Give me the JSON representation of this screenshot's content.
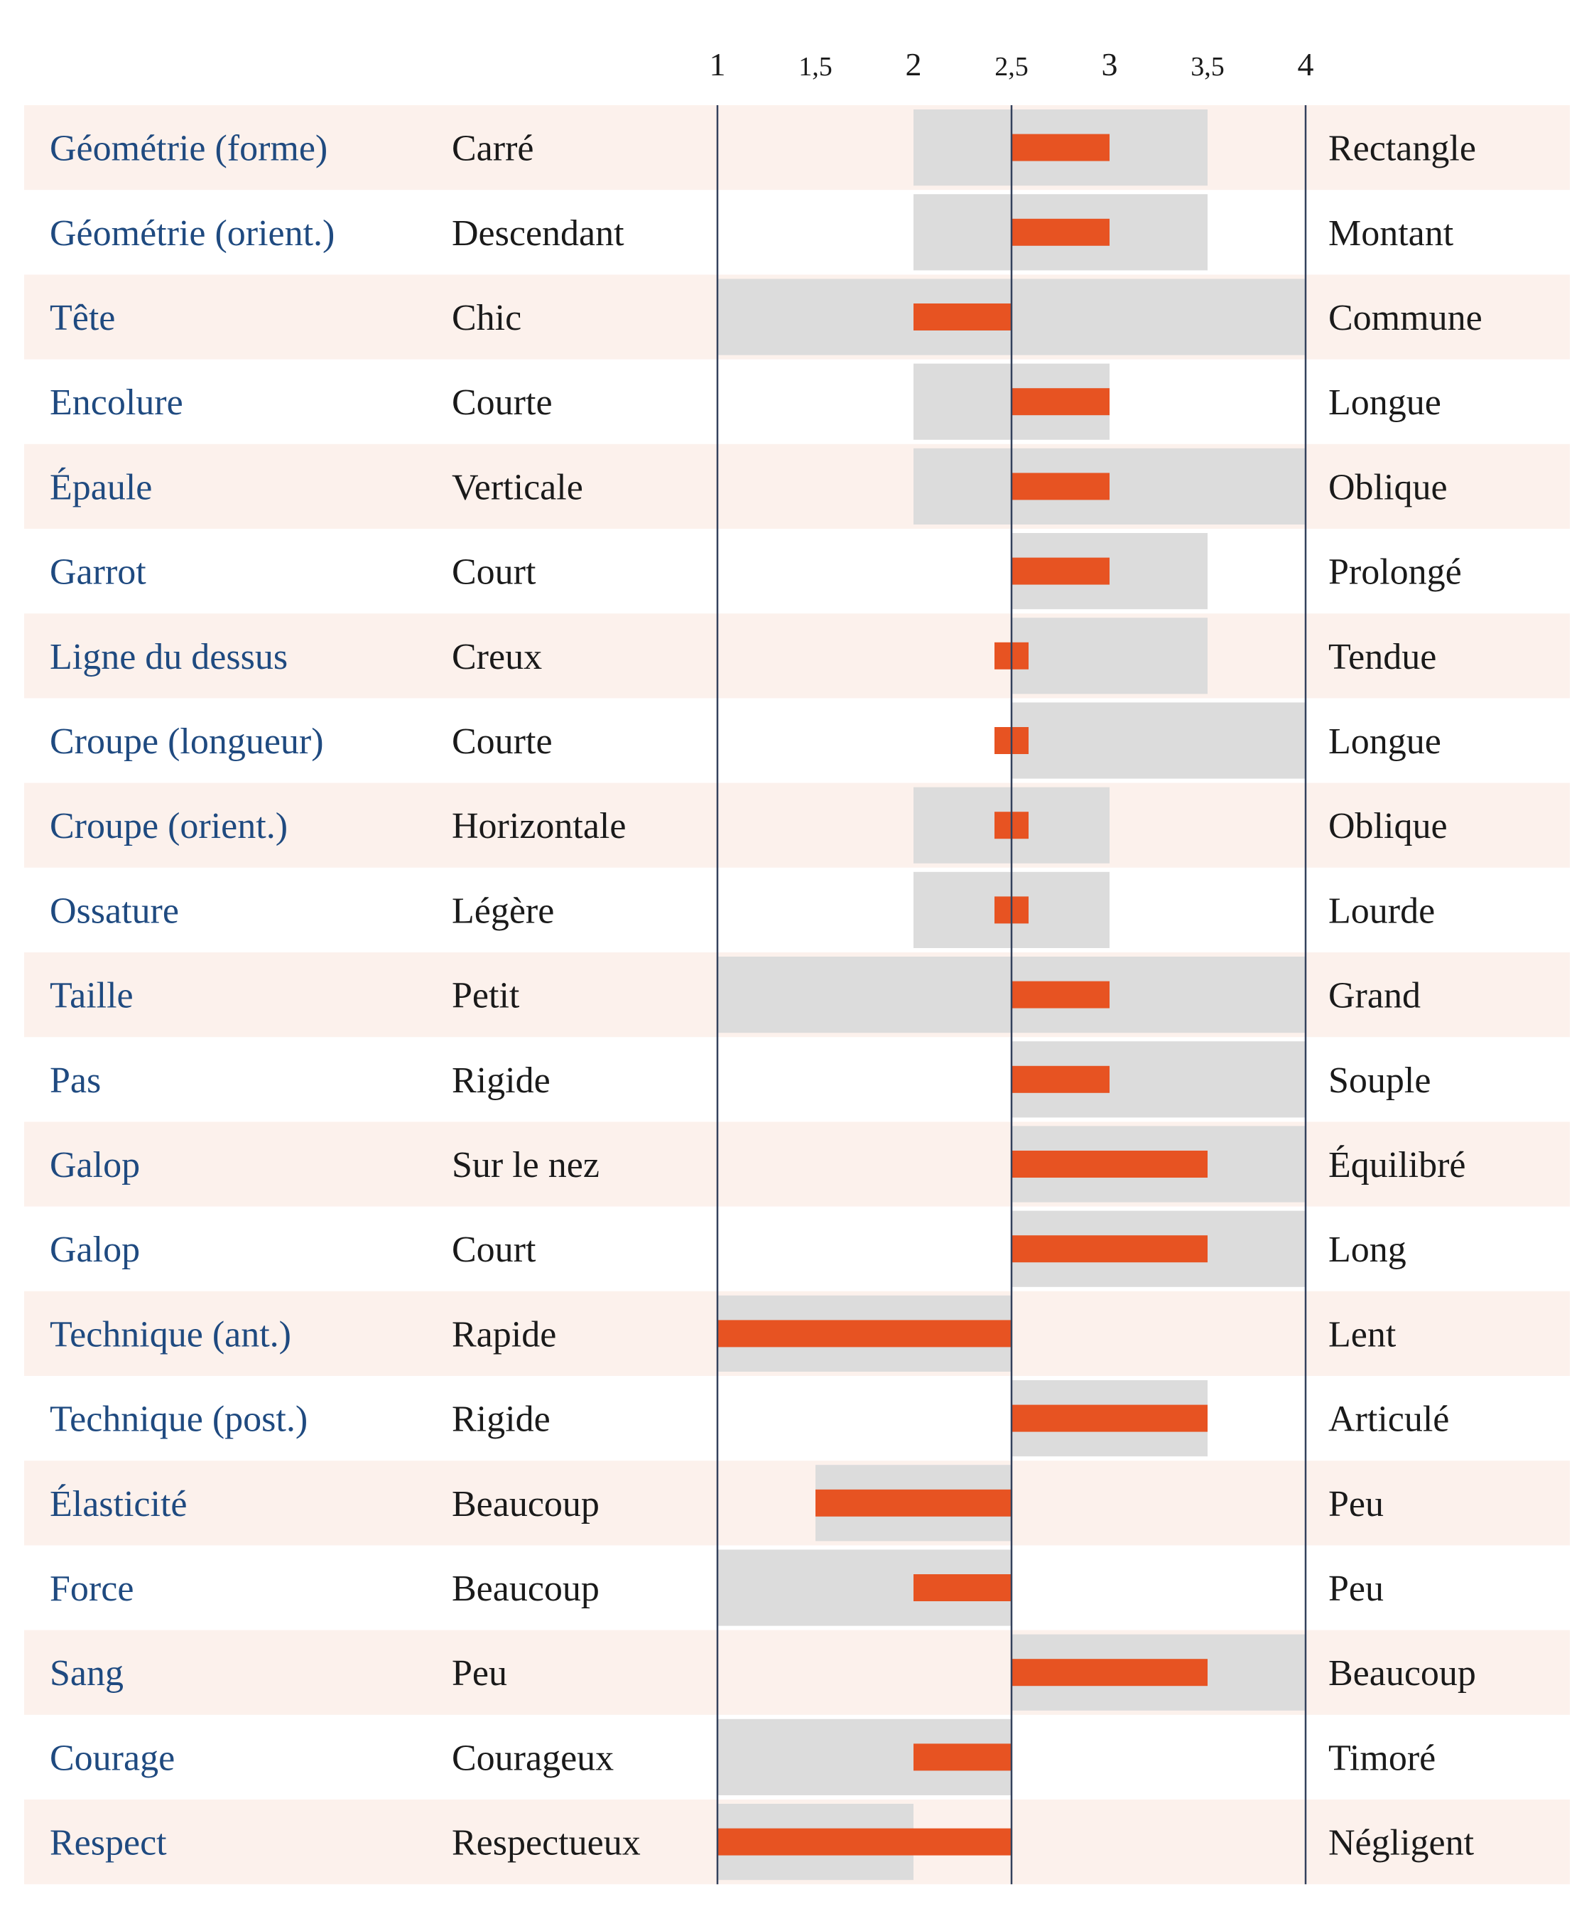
{
  "colors": {
    "row_band": "#fcf1ec",
    "range_fill": "#dcdcdc",
    "value_bar": "#e75322",
    "axis_line": "#33415c",
    "trait_text": "#1f4a80",
    "pole_text": "#1a1a1a"
  },
  "chart_data": {
    "type": "bar",
    "x_ticks": [
      "1",
      "1,5",
      "2",
      "2,5",
      "3",
      "3,5",
      "4"
    ],
    "x_tick_values": [
      1,
      1.5,
      2,
      2.5,
      3,
      3.5,
      4
    ],
    "xlim": [
      1,
      4
    ],
    "baseline": 2.5,
    "rows": [
      {
        "trait": "Géométrie (forme)",
        "left": "Carré",
        "right": "Rectangle",
        "range": [
          2,
          3.5
        ],
        "value": 3
      },
      {
        "trait": "Géométrie (orient.)",
        "left": "Descendant",
        "right": "Montant",
        "range": [
          2,
          3.5
        ],
        "value": 3
      },
      {
        "trait": "Tête",
        "left": "Chic",
        "right": "Commune",
        "range": [
          1,
          4
        ],
        "value": 2
      },
      {
        "trait": "Encolure",
        "left": "Courte",
        "right": "Longue",
        "range": [
          2,
          3
        ],
        "value": 3
      },
      {
        "trait": "Épaule",
        "left": "Verticale",
        "right": "Oblique",
        "range": [
          2,
          4
        ],
        "value": 3
      },
      {
        "trait": "Garrot",
        "left": "Court",
        "right": "Prolongé",
        "range": [
          2.5,
          3.5
        ],
        "value": 3
      },
      {
        "trait": "Ligne du dessus",
        "left": "Creux",
        "right": "Tendue",
        "range": [
          2.5,
          3.5
        ],
        "value": 2.5
      },
      {
        "trait": "Croupe (longueur)",
        "left": "Courte",
        "right": "Longue",
        "range": [
          2.5,
          4
        ],
        "value": 2.5
      },
      {
        "trait": "Croupe (orient.)",
        "left": "Horizontale",
        "right": "Oblique",
        "range": [
          2,
          3
        ],
        "value": 2.5
      },
      {
        "trait": "Ossature",
        "left": "Légère",
        "right": "Lourde",
        "range": [
          2,
          3
        ],
        "value": 2.5
      },
      {
        "trait": "Taille",
        "left": "Petit",
        "right": "Grand",
        "range": [
          1,
          4
        ],
        "value": 3
      },
      {
        "trait": "Pas",
        "left": "Rigide",
        "right": "Souple",
        "range": [
          2.5,
          4
        ],
        "value": 3
      },
      {
        "trait": "Galop",
        "left": "Sur le nez",
        "right": "Équilibré",
        "range": [
          2.5,
          4
        ],
        "value": 3.5
      },
      {
        "trait": "Galop",
        "left": "Court",
        "right": "Long",
        "range": [
          2.5,
          4
        ],
        "value": 3.5
      },
      {
        "trait": "Technique (ant.)",
        "left": "Rapide",
        "right": "Lent",
        "range": [
          1,
          2.5
        ],
        "value": 1
      },
      {
        "trait": "Technique (post.)",
        "left": "Rigide",
        "right": "Articulé",
        "range": [
          2.5,
          3.5
        ],
        "value": 3.5
      },
      {
        "trait": "Élasticité",
        "left": "Beaucoup",
        "right": "Peu",
        "range": [
          1.5,
          2.5
        ],
        "value": 1.5
      },
      {
        "trait": "Force",
        "left": "Beaucoup",
        "right": "Peu",
        "range": [
          1,
          2.5
        ],
        "value": 2
      },
      {
        "trait": "Sang",
        "left": "Peu",
        "right": "Beaucoup",
        "range": [
          2.5,
          4
        ],
        "value": 3.5
      },
      {
        "trait": "Courage",
        "left": "Courageux",
        "right": "Timoré",
        "range": [
          1,
          2.5
        ],
        "value": 2
      },
      {
        "trait": "Respect",
        "left": "Respectueux",
        "right": "Négligent",
        "range": [
          1,
          2
        ],
        "value": 1
      }
    ]
  }
}
